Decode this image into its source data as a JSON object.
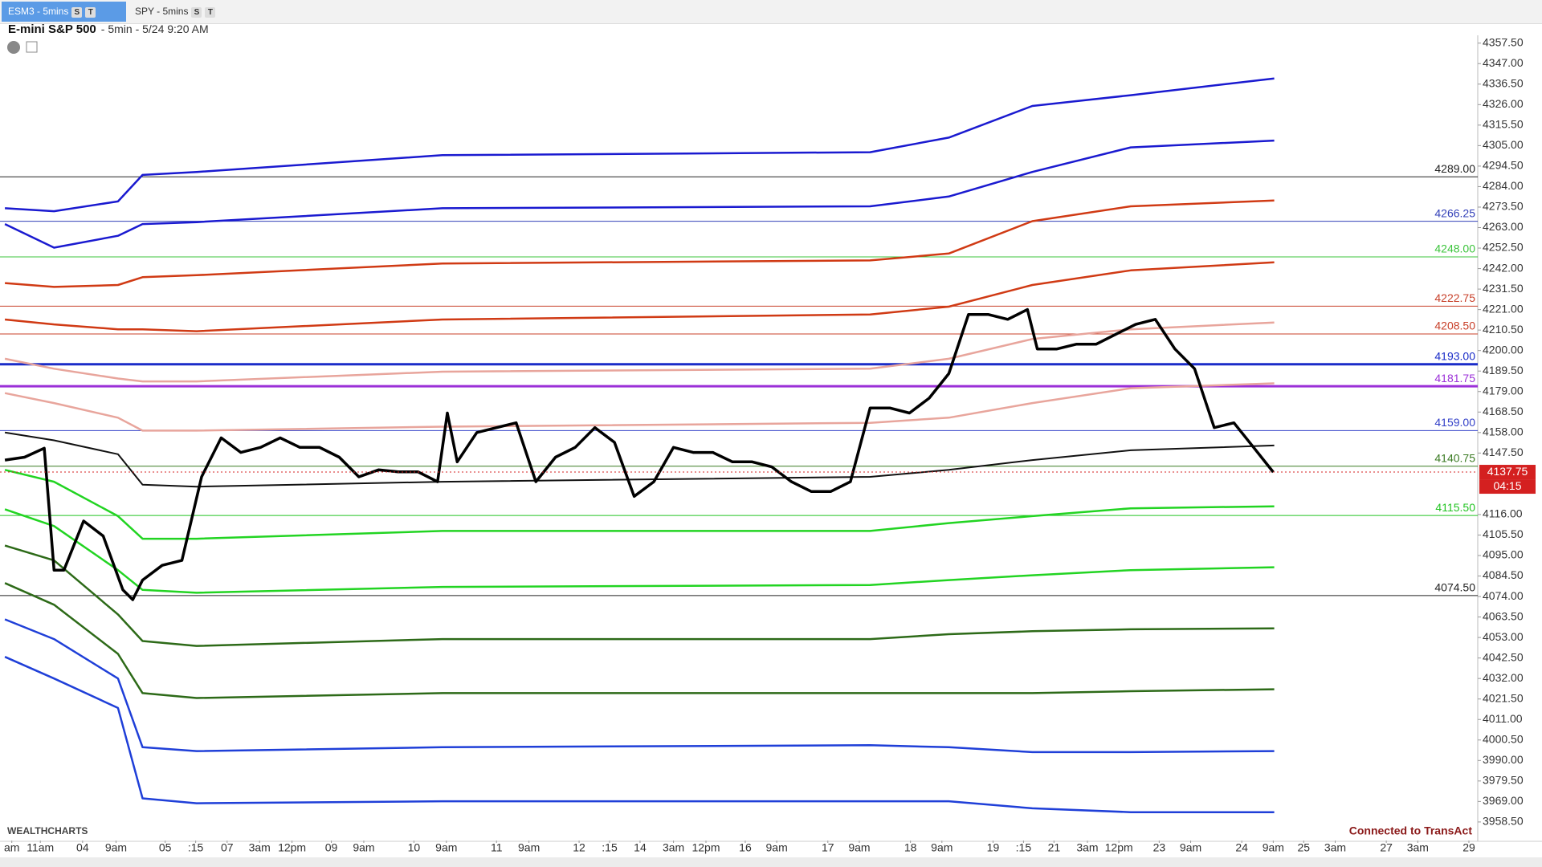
{
  "tabs": [
    {
      "label": "ESM3 - 5mins",
      "badges": [
        "S",
        "T"
      ]
    },
    {
      "label": "SPY - 5mins",
      "badges": [
        "S",
        "T"
      ]
    }
  ],
  "header": {
    "title": "E-mini S&P 500",
    "subtitle": "- 5min - 5/24 9:20 AM"
  },
  "footer": {
    "brand": "WEALTHCHARTS",
    "status": "Connected to TransAct"
  },
  "chart_data": {
    "type": "line",
    "xlim": [
      0,
      1503
    ],
    "ylim": [
      3949,
      4361.5
    ],
    "yticks": [
      {
        "value": 4357.5,
        "label": "4357.50"
      },
      {
        "value": 4347,
        "label": "4347.00"
      },
      {
        "value": 4336.5,
        "label": "4336.50"
      },
      {
        "value": 4326,
        "label": "4326.00"
      },
      {
        "value": 4315.5,
        "label": "4315.50"
      },
      {
        "value": 4305,
        "label": "4305.00"
      },
      {
        "value": 4294.5,
        "label": "4294.50"
      },
      {
        "value": 4284,
        "label": "4284.00"
      },
      {
        "value": 4273.5,
        "label": "4273.50"
      },
      {
        "value": 4263,
        "label": "4263.00"
      },
      {
        "value": 4252.5,
        "label": "4252.50"
      },
      {
        "value": 4242,
        "label": "4242.00"
      },
      {
        "value": 4231.5,
        "label": "4231.50"
      },
      {
        "value": 4221,
        "label": "4221.00"
      },
      {
        "value": 4210.5,
        "label": "4210.50"
      },
      {
        "value": 4200,
        "label": "4200.00"
      },
      {
        "value": 4189.5,
        "label": "4189.50"
      },
      {
        "value": 4179,
        "label": "4179.00"
      },
      {
        "value": 4168.5,
        "label": "4168.50"
      },
      {
        "value": 4158,
        "label": "4158.00"
      },
      {
        "value": 4147.5,
        "label": "4147.50"
      },
      {
        "value": 4116,
        "label": "4116.00"
      },
      {
        "value": 4105.5,
        "label": "4105.50"
      },
      {
        "value": 4095,
        "label": "4095.00"
      },
      {
        "value": 4084.5,
        "label": "4084.50"
      },
      {
        "value": 4074,
        "label": "4074.00"
      },
      {
        "value": 4063.5,
        "label": "4063.50"
      },
      {
        "value": 4053,
        "label": "4053.00"
      },
      {
        "value": 4042.5,
        "label": "4042.50"
      },
      {
        "value": 4032,
        "label": "4032.00"
      },
      {
        "value": 4021.5,
        "label": "4021.50"
      },
      {
        "value": 4011,
        "label": "4011.00"
      },
      {
        "value": 4000.5,
        "label": "4000.50"
      },
      {
        "value": 3990,
        "label": "3990.00"
      },
      {
        "value": 3979.5,
        "label": "3979.50"
      },
      {
        "value": 3969,
        "label": "3969.00"
      },
      {
        "value": 3958.5,
        "label": "3958.50"
      }
    ],
    "xticks": [
      {
        "value": 12,
        "label": "am"
      },
      {
        "value": 41,
        "label": "11am"
      },
      {
        "value": 84,
        "label": "04"
      },
      {
        "value": 118,
        "label": "9am"
      },
      {
        "value": 168,
        "label": "05"
      },
      {
        "value": 199,
        "label": ":15"
      },
      {
        "value": 231,
        "label": "07"
      },
      {
        "value": 264,
        "label": "3am"
      },
      {
        "value": 297,
        "label": "12pm"
      },
      {
        "value": 337,
        "label": "09"
      },
      {
        "value": 370,
        "label": "9am"
      },
      {
        "value": 421,
        "label": "10"
      },
      {
        "value": 454,
        "label": "9am"
      },
      {
        "value": 505,
        "label": "11"
      },
      {
        "value": 538,
        "label": "9am"
      },
      {
        "value": 589,
        "label": "12"
      },
      {
        "value": 620,
        "label": ":15"
      },
      {
        "value": 651,
        "label": "14"
      },
      {
        "value": 685,
        "label": "3am"
      },
      {
        "value": 718,
        "label": "12pm"
      },
      {
        "value": 758,
        "label": "16"
      },
      {
        "value": 790,
        "label": "9am"
      },
      {
        "value": 842,
        "label": "17"
      },
      {
        "value": 874,
        "label": "9am"
      },
      {
        "value": 926,
        "label": "18"
      },
      {
        "value": 958,
        "label": "9am"
      },
      {
        "value": 1010,
        "label": "19"
      },
      {
        "value": 1041,
        "label": ":15"
      },
      {
        "value": 1072,
        "label": "21"
      },
      {
        "value": 1106,
        "label": "3am"
      },
      {
        "value": 1138,
        "label": "12pm"
      },
      {
        "value": 1179,
        "label": "23"
      },
      {
        "value": 1211,
        "label": "9am"
      },
      {
        "value": 1263,
        "label": "24"
      },
      {
        "value": 1295,
        "label": "9am"
      },
      {
        "value": 1326,
        "label": "25"
      },
      {
        "value": 1358,
        "label": "3am"
      },
      {
        "value": 1410,
        "label": "27"
      },
      {
        "value": 1442,
        "label": "3am"
      },
      {
        "value": 1494,
        "label": "29"
      }
    ],
    "levels": [
      {
        "value": 4289,
        "label": "4289.00",
        "color": "#222222",
        "width": 1
      },
      {
        "value": 4266.25,
        "label": "4266.25",
        "color": "#3340b8",
        "width": 1
      },
      {
        "value": 4248,
        "label": "4248.00",
        "color": "#3cc43c",
        "width": 1
      },
      {
        "value": 4222.75,
        "label": "4222.75",
        "color": "#c8402a",
        "width": 1
      },
      {
        "value": 4208.5,
        "label": "4208.50",
        "color": "#c8402a",
        "width": 1
      },
      {
        "value": 4193,
        "label": "4193.00",
        "color": "#1a2cc8",
        "width": 3
      },
      {
        "value": 4181.75,
        "label": "4181.75",
        "color": "#9b30d8",
        "width": 3
      },
      {
        "value": 4159,
        "label": "4159.00",
        "color": "#3340c8",
        "width": 1
      },
      {
        "value": 4140.75,
        "label": "4140.75",
        "color": "#3a7a22",
        "width": 1
      },
      {
        "value": 4115.5,
        "label": "4115.50",
        "color": "#22c422",
        "width": 1
      },
      {
        "value": 4074.5,
        "label": "4074.50",
        "color": "#222222",
        "width": 1
      }
    ],
    "current_price": {
      "value": 4137.75,
      "label": "4137.75",
      "countdown": "04:15",
      "color": "#d42020"
    },
    "series": [
      {
        "color": "#000000",
        "width": 3.5,
        "x": [
          5,
          25,
          45,
          55,
          65,
          85,
          105,
          125,
          135,
          145,
          165,
          185,
          205,
          225,
          245,
          265,
          285,
          305,
          325,
          345,
          365,
          385,
          405,
          425,
          445,
          455,
          465,
          485,
          505,
          525,
          545,
          565,
          585,
          605,
          625,
          645,
          665,
          685,
          705,
          725,
          745,
          765,
          785,
          805,
          825,
          845,
          865,
          885,
          905,
          925,
          945,
          965,
          985,
          1005,
          1025,
          1045,
          1055,
          1075,
          1095,
          1115,
          1135,
          1155,
          1175,
          1195,
          1215,
          1235,
          1255,
          1275,
          1295
        ],
        "values": [
          4143.9,
          4145.4,
          4150,
          4087.5,
          4087.5,
          4112.7,
          4105,
          4077.4,
          4072.4,
          4082.4,
          4090,
          4092.5,
          4135.3,
          4155.3,
          4147.8,
          4150.4,
          4155.3,
          4150.4,
          4150.4,
          4145.4,
          4135.3,
          4138.9,
          4137.9,
          4137.9,
          4132.8,
          4168,
          4143,
          4158,
          4160.5,
          4163,
          4132.8,
          4145.4,
          4150.4,
          4160.5,
          4153,
          4125.3,
          4132.8,
          4150.4,
          4147.8,
          4147.8,
          4143,
          4143,
          4140.4,
          4132.8,
          4127.8,
          4127.8,
          4132.8,
          4170.6,
          4170.6,
          4168,
          4175.6,
          4188.2,
          4218.5,
          4218.5,
          4216,
          4221,
          4200.8,
          4200.8,
          4203.3,
          4203.3,
          4208.4,
          4213.4,
          4216,
          4200.8,
          4190.7,
          4160.5,
          4163,
          4150.4,
          4137.75
        ]
      },
      {
        "color": "#1a1ad0",
        "width": 2.5,
        "x": [
          5,
          55,
          120,
          145,
          200,
          450,
          885,
          965,
          1050,
          1150,
          1296
        ],
        "values": [
          4272.9,
          4271.4,
          4276.4,
          4290,
          4291.5,
          4300.1,
          4301.6,
          4309.1,
          4325.3,
          4330.8,
          4339.4
        ]
      },
      {
        "color": "#1a1ad0",
        "width": 2.5,
        "x": [
          5,
          55,
          120,
          145,
          200,
          450,
          885,
          965,
          1050,
          1150,
          1296
        ],
        "values": [
          4264.8,
          4252.7,
          4258.8,
          4264.8,
          4265.8,
          4272.9,
          4273.9,
          4278.9,
          4291.5,
          4304.1,
          4307.6
        ]
      },
      {
        "color": "#d03a14",
        "width": 2.5,
        "x": [
          5,
          55,
          120,
          145,
          200,
          450,
          885,
          965,
          1050,
          1150,
          1296
        ],
        "values": [
          4234.6,
          4232.6,
          4233.6,
          4237.6,
          4238.6,
          4244.6,
          4246.2,
          4249.7,
          4266.3,
          4273.9,
          4276.9
        ]
      },
      {
        "color": "#d03a14",
        "width": 2.5,
        "x": [
          5,
          55,
          120,
          145,
          200,
          450,
          885,
          965,
          1050,
          1150,
          1296
        ],
        "values": [
          4215.9,
          4213.4,
          4210.9,
          4210.9,
          4209.9,
          4215.9,
          4218.5,
          4222.5,
          4233.6,
          4241.1,
          4245.2
        ]
      },
      {
        "color": "#e8a59c",
        "width": 2.5,
        "x": [
          5,
          55,
          120,
          145,
          200,
          450,
          885,
          965,
          1050,
          1150,
          1296
        ],
        "values": [
          4195.8,
          4190.7,
          4185.7,
          4184.2,
          4184.2,
          4189.2,
          4190.7,
          4195.8,
          4205.9,
          4210.9,
          4214.4
        ]
      },
      {
        "color": "#e8a59c",
        "width": 2.5,
        "x": [
          5,
          55,
          120,
          145,
          200,
          450,
          885,
          965,
          1050,
          1150,
          1296
        ],
        "values": [
          4178.2,
          4173.1,
          4165.6,
          4159,
          4159,
          4161,
          4163,
          4165.6,
          4173.1,
          4180.7,
          4183.2
        ]
      },
      {
        "color": "#111111",
        "width": 2,
        "x": [
          5,
          55,
          120,
          145,
          200,
          450,
          885,
          965,
          1050,
          1150,
          1296
        ],
        "values": [
          4158,
          4154,
          4146.9,
          4131.3,
          4130.3,
          4132.8,
          4135.3,
          4138.9,
          4143.9,
          4148.9,
          4151.4
        ]
      },
      {
        "color": "#22d422",
        "width": 2.5,
        "x": [
          5,
          55,
          120,
          145,
          200,
          450,
          885,
          965,
          1050,
          1150,
          1296
        ],
        "values": [
          4138.9,
          4132.8,
          4115.2,
          4103.6,
          4103.6,
          4107.6,
          4107.6,
          4111.6,
          4115.2,
          4119.2,
          4120.2
        ]
      },
      {
        "color": "#22d422",
        "width": 2.5,
        "x": [
          5,
          55,
          120,
          145,
          200,
          450,
          885,
          965,
          1050,
          1150,
          1296
        ],
        "values": [
          4118.7,
          4110.1,
          4087.5,
          4077.4,
          4075.9,
          4078.9,
          4079.9,
          4082.4,
          4084.9,
          4087.5,
          4089
        ]
      },
      {
        "color": "#2d6a18",
        "width": 2.5,
        "x": [
          5,
          55,
          120,
          145,
          200,
          450,
          885,
          965,
          1050,
          1150,
          1296
        ],
        "values": [
          4100.1,
          4092.5,
          4064.8,
          4051.2,
          4048.7,
          4052.2,
          4052.2,
          4054.7,
          4056.2,
          4057.2,
          4057.7
        ]
      },
      {
        "color": "#2d6a18",
        "width": 2.5,
        "x": [
          5,
          55,
          120,
          145,
          200,
          450,
          885,
          965,
          1050,
          1150,
          1296
        ],
        "values": [
          4080.9,
          4069.8,
          4044.6,
          4024.5,
          4022,
          4024.5,
          4024.5,
          4024.5,
          4024.5,
          4025.5,
          4026.5
        ]
      },
      {
        "color": "#1f3fd8",
        "width": 2.5,
        "x": [
          5,
          55,
          120,
          145,
          200,
          450,
          885,
          965,
          1050,
          1150,
          1296
        ],
        "values": [
          4062.3,
          4052.2,
          4032,
          3996.8,
          3994.8,
          3996.8,
          3997.8,
          3996.8,
          3994.3,
          3994.3,
          3994.8
        ]
      },
      {
        "color": "#1f3fd8",
        "width": 2.5,
        "x": [
          5,
          55,
          120,
          145,
          200,
          450,
          885,
          965,
          1050,
          1150,
          1296
        ],
        "values": [
          4043.1,
          4032,
          4016.9,
          3970.6,
          3968.1,
          3969.1,
          3969.1,
          3969.1,
          3965.5,
          3963.5,
          3963.5
        ]
      }
    ]
  }
}
